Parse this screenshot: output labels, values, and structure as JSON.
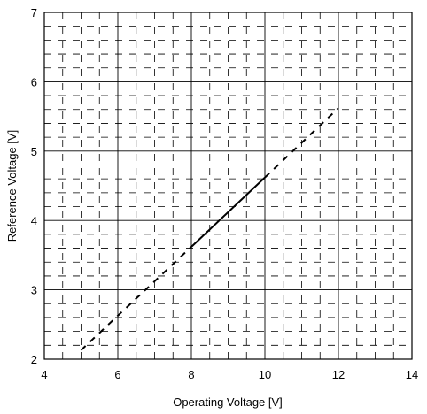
{
  "chart_data": {
    "type": "line",
    "xlabel": "Operating Voltage [V]",
    "ylabel": "Reference Voltage [V]",
    "xlim": [
      4,
      14
    ],
    "ylim": [
      2,
      7
    ],
    "xticks": [
      4,
      6,
      8,
      10,
      12,
      14
    ],
    "yticks": [
      2,
      3,
      4,
      5,
      6,
      7
    ],
    "x_tick_labels": [
      "4",
      "6",
      "8",
      "10",
      "12",
      "14"
    ],
    "y_tick_labels": [
      "2",
      "3",
      "4",
      "5",
      "6",
      "7"
    ],
    "grid": true,
    "legend": "none",
    "series": [
      {
        "style": "dashed",
        "x": [
          5,
          8
        ],
        "y": [
          2.13,
          3.62
        ]
      },
      {
        "style": "solid",
        "x": [
          8,
          10
        ],
        "y": [
          3.62,
          4.62
        ]
      },
      {
        "style": "dashed",
        "x": [
          10,
          12
        ],
        "y": [
          4.62,
          5.62
        ]
      }
    ]
  }
}
